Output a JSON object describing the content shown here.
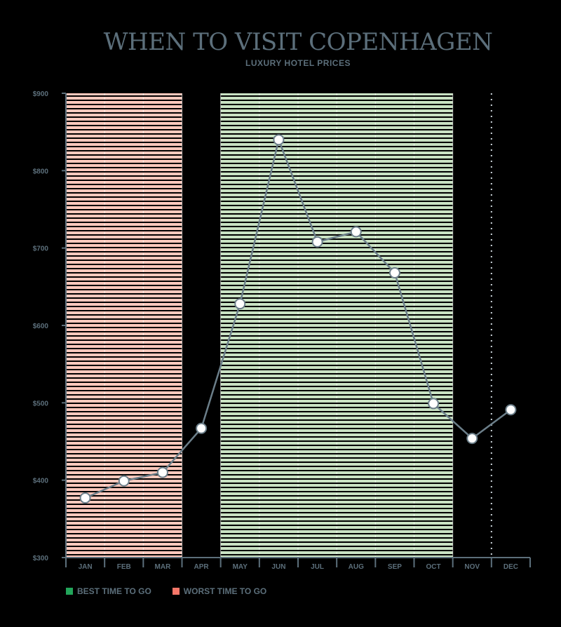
{
  "chart_data": {
    "type": "line",
    "title": "WHEN TO VISIT COPENHAGEN",
    "subtitle": "LUXURY HOTEL PRICES",
    "categories": [
      "JAN",
      "FEB",
      "MAR",
      "APR",
      "MAY",
      "JUN",
      "JUL",
      "AUG",
      "SEP",
      "OCT",
      "NOV",
      "DEC"
    ],
    "series": [
      {
        "values": [
          377,
          399,
          410,
          467,
          628,
          840,
          708,
          721,
          668,
          499,
          454,
          491
        ]
      }
    ],
    "ylim": [
      300,
      900
    ],
    "yticks": [
      300,
      400,
      500,
      600,
      700,
      800,
      900
    ],
    "ytick_labels": [
      "$300",
      "$400",
      "$500",
      "$600",
      "$700",
      "$800",
      "$900"
    ],
    "bands": [
      {
        "label": "WORST TIME TO GO",
        "from": "JAN",
        "to": "MAR",
        "color": "#ffc9bd"
      },
      {
        "label": "BEST TIME TO GO",
        "from": "MAY",
        "to": "OCT",
        "color": "#c9e2c3"
      }
    ],
    "legend": [
      {
        "label": "BEST TIME TO GO",
        "color": "#22a55a"
      },
      {
        "label": "WORST TIME TO GO",
        "color": "#f77769"
      }
    ],
    "legend_position": "bottom-left",
    "grid": false
  },
  "colors": {
    "axis": "#5c6f7b",
    "line": "#6b7e89",
    "marker_fill": "#ffffff",
    "marker_stroke": "#6b7e89"
  }
}
